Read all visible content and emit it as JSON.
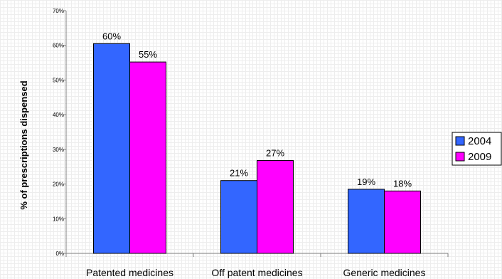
{
  "chart_data": {
    "type": "bar",
    "title": "",
    "xlabel": "",
    "ylabel": "% of prescriptions dispensed",
    "categories": [
      "Patented medicines",
      "Off patent medicines",
      "Generic medicines"
    ],
    "series": [
      {
        "name": "2004",
        "values": [
          60.5,
          21,
          18.5
        ],
        "labels": [
          "60%",
          "21%",
          "19%"
        ],
        "color": "#3366ff"
      },
      {
        "name": "2009",
        "values": [
          55.2,
          26.8,
          18
        ],
        "labels": [
          "55%",
          "27%",
          "18%"
        ],
        "color": "#ff00ff"
      }
    ],
    "ylim": [
      0,
      70
    ],
    "yticks": [
      0,
      10,
      20,
      30,
      40,
      50,
      60,
      70
    ],
    "ytick_labels": [
      "0%",
      "10%",
      "20%",
      "30%",
      "40%",
      "50%",
      "60%",
      "70%"
    ],
    "grid": true,
    "legend": "right"
  }
}
